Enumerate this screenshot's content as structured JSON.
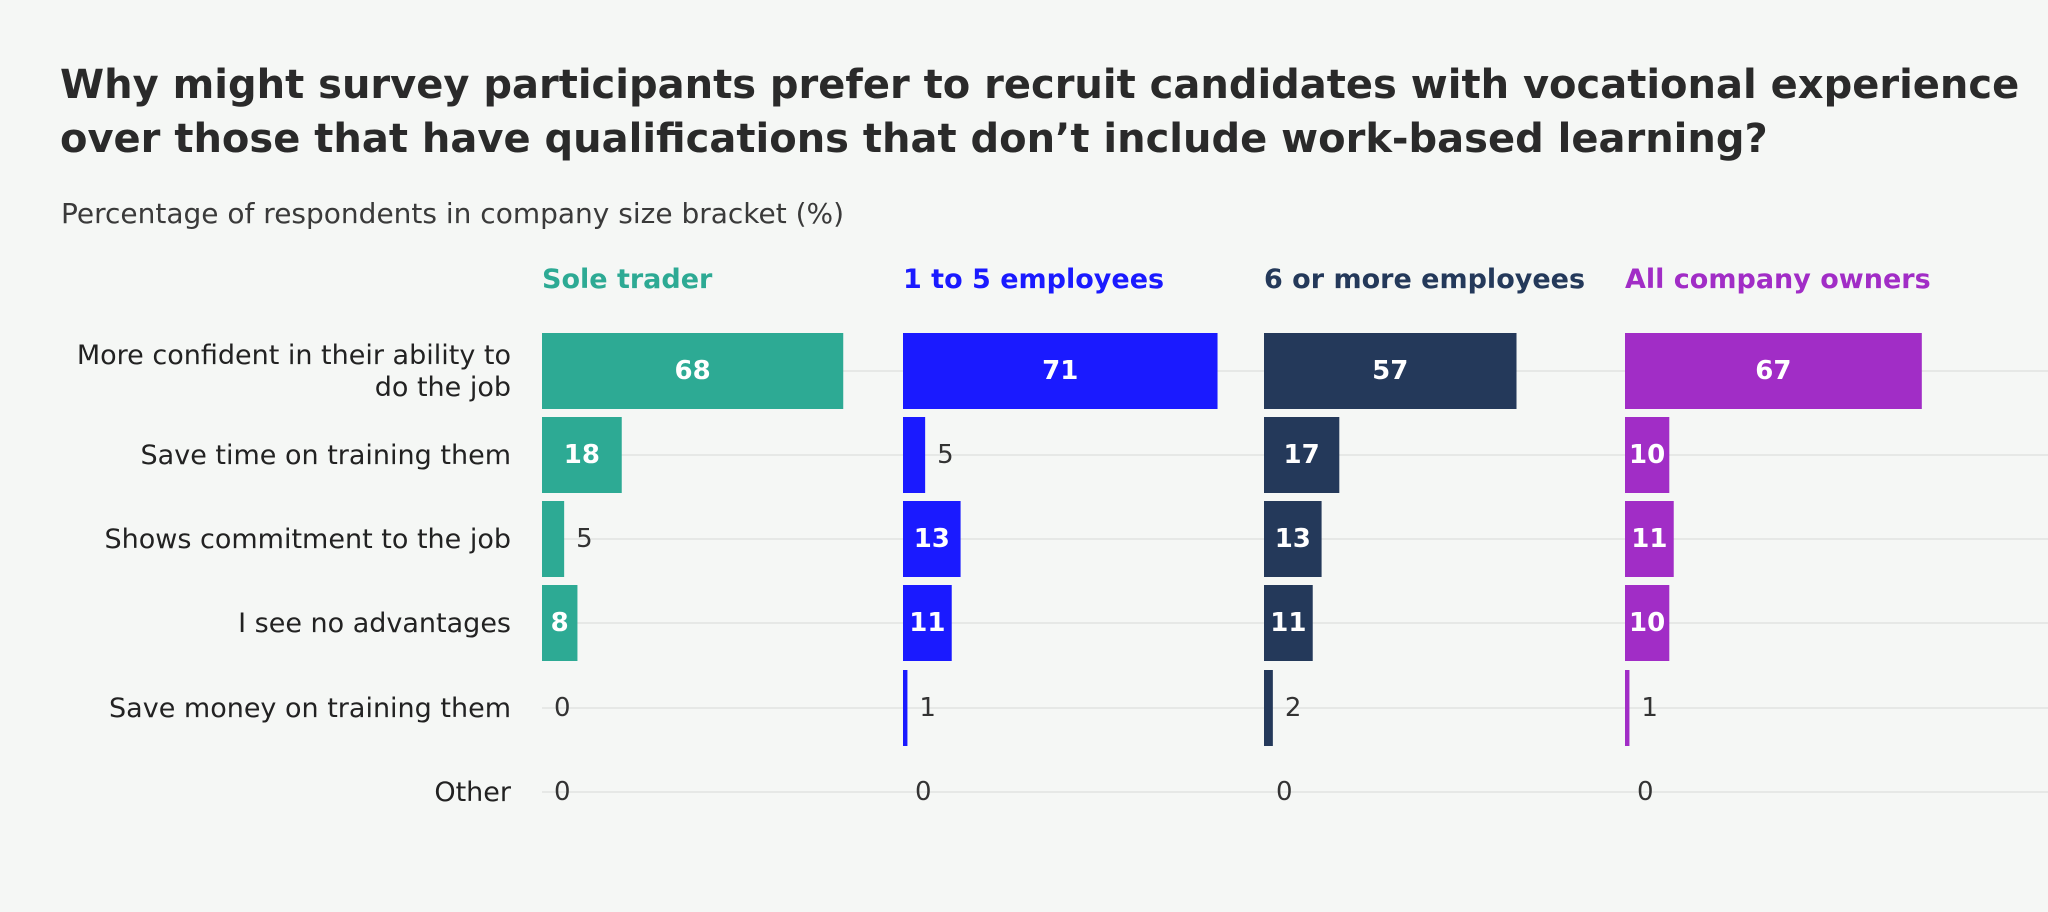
{
  "title": "Why might survey participants prefer to recruit candidates with vocational experience over those that have qualifications that don’t include work-based learning?",
  "subtitle": "Percentage of respondents in company size bracket (%)",
  "chart_data": {
    "type": "bar",
    "orientation": "horizontal",
    "layout": "small-multiples",
    "categories": [
      [
        "More confident in their ability to",
        "do the job"
      ],
      [
        "Save time on training them"
      ],
      [
        "Shows commitment to the job"
      ],
      [
        "I see no advantages"
      ],
      [
        "Save money on training them"
      ],
      [
        "Other"
      ]
    ],
    "series": [
      {
        "name": "Sole trader",
        "color": "#2daa94",
        "values": [
          68,
          18,
          5,
          8,
          0,
          0
        ]
      },
      {
        "name": "1 to 5 employees",
        "color": "#1a1aff",
        "values": [
          71,
          5,
          13,
          11,
          1,
          0
        ]
      },
      {
        "name": "6 or more employees",
        "color": "#24395a",
        "values": [
          57,
          17,
          13,
          11,
          2,
          0
        ]
      },
      {
        "name": "All company owners",
        "color": "#a12dc6",
        "values": [
          67,
          10,
          11,
          10,
          1,
          0
        ]
      }
    ],
    "xlim": [
      0,
      100
    ],
    "grid": true,
    "legend": "panel-titles"
  }
}
